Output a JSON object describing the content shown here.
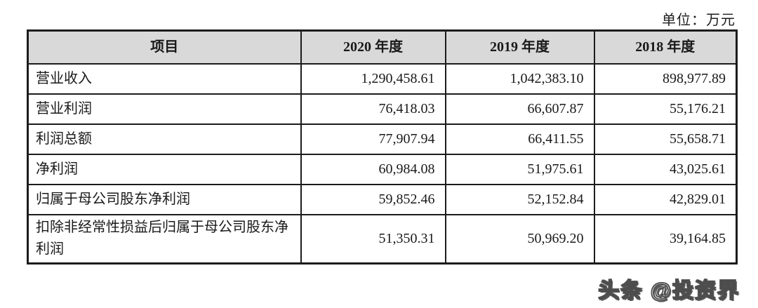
{
  "unit_label": "单位：万元",
  "watermark": "头条 @投资界",
  "table": {
    "columns": [
      "项目",
      "2020 年度",
      "2019 年度",
      "2018 年度"
    ],
    "rows": [
      {
        "label": "营业收入",
        "values": [
          "1,290,458.61",
          "1,042,383.10",
          "898,977.89"
        ]
      },
      {
        "label": "营业利润",
        "values": [
          "76,418.03",
          "66,607.87",
          "55,176.21"
        ]
      },
      {
        "label": "利润总额",
        "values": [
          "77,907.94",
          "66,411.55",
          "55,658.71"
        ]
      },
      {
        "label": "净利润",
        "values": [
          "60,984.08",
          "51,975.61",
          "43,025.61"
        ]
      },
      {
        "label": "归属于母公司股东净利润",
        "values": [
          "59,852.46",
          "52,152.84",
          "42,829.01"
        ]
      },
      {
        "label": "扣除非经常性损益后归属于母公司股东净利润",
        "values": [
          "51,350.31",
          "50,969.20",
          "39,164.85"
        ]
      }
    ]
  },
  "chart_data": {
    "type": "table",
    "title": "",
    "unit": "万元",
    "categories": [
      "2020 年度",
      "2019 年度",
      "2018 年度"
    ],
    "series": [
      {
        "name": "营业收入",
        "values": [
          1290458.61,
          1042383.1,
          898977.89
        ]
      },
      {
        "name": "营业利润",
        "values": [
          76418.03,
          66607.87,
          55176.21
        ]
      },
      {
        "name": "利润总额",
        "values": [
          77907.94,
          66411.55,
          55658.71
        ]
      },
      {
        "name": "净利润",
        "values": [
          60984.08,
          51975.61,
          43025.61
        ]
      },
      {
        "name": "归属于母公司股东净利润",
        "values": [
          59852.46,
          52152.84,
          42829.01
        ]
      },
      {
        "name": "扣除非经常性损益后归属于母公司股东净利润",
        "values": [
          51350.31,
          50969.2,
          39164.85
        ]
      }
    ]
  }
}
